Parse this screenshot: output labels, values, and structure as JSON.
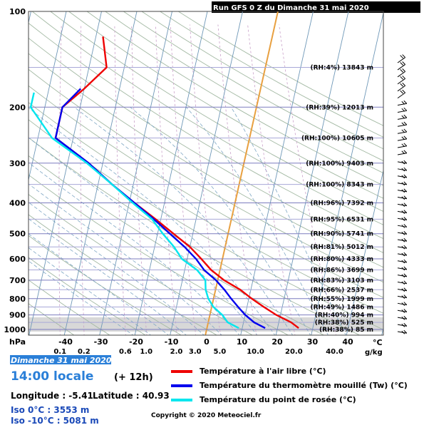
{
  "title": "Run GFS 0 Z du Dimanche 31 mai 2020",
  "footer": {
    "date": "Dimanche 31 mai 2020",
    "time": "14:00 locale",
    "offset": "(+ 12h)",
    "longitude": "Longitude : -5.41",
    "latitude": "Latitude : 40.93",
    "iso0": "Iso 0°C : 3553 m",
    "iso10": "Iso -10°C : 5081 m",
    "copyright": "Copyright © 2020 Meteociel.fr"
  },
  "legend": [
    {
      "label": "Température à l'air libre (°C)",
      "color": "#ee0000"
    },
    {
      "label": "Température du thermomètre mouillé (Tw) (°C)",
      "color": "#0000ee"
    },
    {
      "label": "Température du point de rosée (°C)",
      "color": "#00e6ee"
    }
  ],
  "chart_data": {
    "type": "line",
    "chart_kind": "skew-T log-P",
    "y_axis": {
      "unit": "hPa",
      "ticks": [
        100,
        200,
        300,
        400,
        500,
        600,
        700,
        800,
        900,
        1000
      ],
      "scale": "log"
    },
    "x_axis": {
      "unit": "°C",
      "ticks": [
        -40,
        -30,
        -20,
        -10,
        0,
        10,
        20,
        30,
        40
      ]
    },
    "mixing_ratio_axis": {
      "unit": "g/kg",
      "ticks": [
        "0.1",
        "0.2",
        "0.6",
        "1.0",
        "2.0",
        "3.0",
        "5.0",
        "10.0",
        "20.0",
        "40.0"
      ]
    },
    "levels": [
      {
        "rh": "(RH:4%)",
        "alt": "13843 m",
        "p": 150
      },
      {
        "rh": "(RH:39%)",
        "alt": "12013 m",
        "p": 200
      },
      {
        "rh": "(RH:100%)",
        "alt": "10605 m",
        "p": 250
      },
      {
        "rh": "(RH:100%)",
        "alt": "9403 m",
        "p": 300
      },
      {
        "rh": "(RH:100%)",
        "alt": "8343 m",
        "p": 350
      },
      {
        "rh": "(RH:96%)",
        "alt": "7392 m",
        "p": 400
      },
      {
        "rh": "(RH:95%)",
        "alt": "6531 m",
        "p": 450
      },
      {
        "rh": "(RH:90%)",
        "alt": "5741 m",
        "p": 500
      },
      {
        "rh": "(RH:81%)",
        "alt": "5012 m",
        "p": 550
      },
      {
        "rh": "(RH:80%)",
        "alt": "4333 m",
        "p": 600
      },
      {
        "rh": "(RH:86%)",
        "alt": "3699 m",
        "p": 650
      },
      {
        "rh": "(RH:83%)",
        "alt": "3103 m",
        "p": 700
      },
      {
        "rh": "(RH:66%)",
        "alt": "2537 m",
        "p": 750
      },
      {
        "rh": "(RH:55%)",
        "alt": "1999 m",
        "p": 800
      },
      {
        "rh": "(RH:49%)",
        "alt": "1486 m",
        "p": 850
      },
      {
        "rh": "(RH:40%)",
        "alt": "994 m",
        "p": 900
      },
      {
        "rh": "(RH:38%)",
        "alt": "525 m",
        "p": 950
      },
      {
        "rh": "(RH:38%)",
        "alt": "85 m",
        "p": 1000
      }
    ],
    "series": [
      {
        "name": "Température à l'air libre (°C)",
        "color": "#ee0000",
        "points": [
          [
            120,
            -48
          ],
          [
            150,
            -45
          ],
          [
            175,
            -50
          ],
          [
            200,
            -55
          ],
          [
            250,
            -55
          ],
          [
            300,
            -44
          ],
          [
            350,
            -36
          ],
          [
            400,
            -28.5
          ],
          [
            450,
            -21.5
          ],
          [
            500,
            -15.5
          ],
          [
            550,
            -10
          ],
          [
            600,
            -6
          ],
          [
            650,
            -2.5
          ],
          [
            700,
            1.8
          ],
          [
            750,
            7
          ],
          [
            800,
            10.8
          ],
          [
            850,
            14.8
          ],
          [
            900,
            18.8
          ],
          [
            950,
            23.5
          ],
          [
            990,
            26
          ]
        ]
      },
      {
        "name": "Température du thermomètre mouillé (Tw) (°C)",
        "color": "#0000ee",
        "points": [
          [
            175,
            -51
          ],
          [
            200,
            -55
          ],
          [
            250,
            -55
          ],
          [
            300,
            -44
          ],
          [
            350,
            -36
          ],
          [
            400,
            -28.5
          ],
          [
            450,
            -22
          ],
          [
            500,
            -16.5
          ],
          [
            550,
            -11.5
          ],
          [
            600,
            -7.5
          ],
          [
            650,
            -4.5
          ],
          [
            700,
            -0.5
          ],
          [
            750,
            2.5
          ],
          [
            800,
            5
          ],
          [
            850,
            7.5
          ],
          [
            900,
            10
          ],
          [
            950,
            13
          ],
          [
            990,
            16.5
          ]
        ]
      },
      {
        "name": "Température du point de rosée (°C)",
        "color": "#00e6ee",
        "points": [
          [
            180,
            -64
          ],
          [
            200,
            -64
          ],
          [
            250,
            -56
          ],
          [
            300,
            -44.5
          ],
          [
            350,
            -36
          ],
          [
            400,
            -29
          ],
          [
            450,
            -22.5
          ],
          [
            500,
            -18.5
          ],
          [
            550,
            -14.5
          ],
          [
            600,
            -11.5
          ],
          [
            650,
            -6.5
          ],
          [
            700,
            -3.5
          ],
          [
            750,
            -2.8
          ],
          [
            800,
            -1.5
          ],
          [
            850,
            0.5
          ],
          [
            900,
            3.5
          ],
          [
            950,
            5.5
          ],
          [
            990,
            9
          ]
        ]
      }
    ],
    "wind_barbs": 39
  }
}
